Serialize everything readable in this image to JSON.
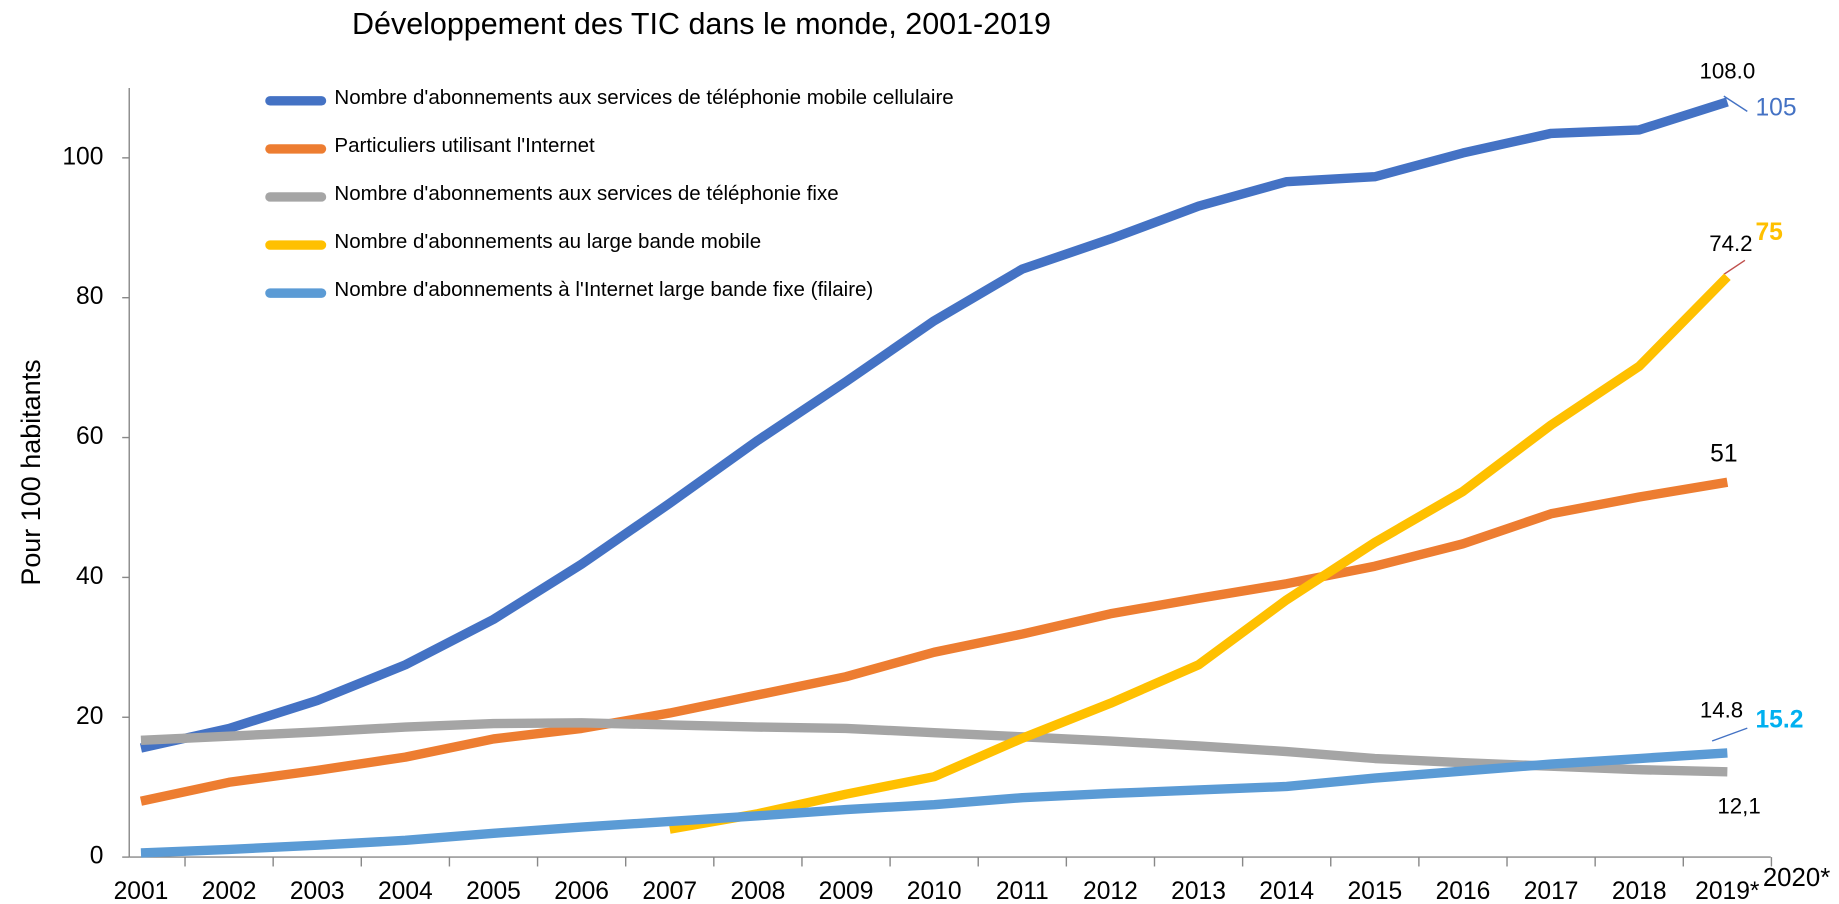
{
  "chart_data": {
    "type": "line",
    "title": "Développement des TIC dans le monde, 2001-2019",
    "y_label": "Pour 100 habitants",
    "categories": [
      "2001",
      "2002",
      "2003",
      "2004",
      "2005",
      "2006",
      "2007",
      "2008",
      "2009",
      "2010",
      "2011",
      "2012",
      "2013",
      "2014",
      "2015",
      "2016",
      "2017",
      "2018",
      "2019*"
    ],
    "x_axis_end_label": "2020*",
    "ylim": [
      0,
      110
    ],
    "yticks": [
      0,
      20,
      40,
      60,
      80,
      100
    ],
    "legend": "top-left",
    "series": [
      {
        "name": "Nombre d'abonnements aux services de téléphonie mobile cellulaire",
        "color": "#4472c4",
        "values": [
          15.6,
          18.4,
          22.4,
          27.5,
          34,
          41.9,
          50.6,
          59.6,
          68,
          76.7,
          84.1,
          88.4,
          93.1,
          96.6,
          97.3,
          100.7,
          103.5,
          104,
          108
        ]
      },
      {
        "name": "Particuliers utilisant l'Internet",
        "color": "#ed7d31",
        "values": [
          8,
          10.7,
          12.4,
          14.3,
          16.9,
          18.4,
          20.6,
          23.2,
          25.8,
          29.3,
          31.9,
          34.8,
          37,
          39.1,
          41.6,
          44.8,
          49.1,
          51.5,
          53.6
        ]
      },
      {
        "name": "Nombre d'abonnements aux services de téléphonie fixe",
        "color": "#a5a5a5",
        "values": [
          16.7,
          17.3,
          17.9,
          18.6,
          19.1,
          19.2,
          18.9,
          18.6,
          18.4,
          17.8,
          17.2,
          16.6,
          15.9,
          15.1,
          14.1,
          13.5,
          13,
          12.5,
          12.2
        ]
      },
      {
        "name": "Nombre d'abonnements au large bande mobile",
        "color": "#ffc000",
        "values": [
          null,
          null,
          null,
          null,
          null,
          null,
          4,
          6.2,
          9,
          11.5,
          17,
          22,
          27.5,
          36.8,
          45,
          52.3,
          61.8,
          70.2,
          83
        ]
      },
      {
        "name": "Nombre d'abonnements à l'Internet large bande fixe (filaire)",
        "color": "#5b9bd5",
        "values": [
          0.6,
          1.1,
          1.7,
          2.4,
          3.4,
          4.3,
          5.1,
          5.9,
          6.8,
          7.5,
          8.5,
          9.1,
          9.6,
          10.1,
          11.3,
          12.3,
          13.3,
          14.1,
          14.9
        ]
      }
    ],
    "annotations": [
      {
        "text": "108.0",
        "color": "#000000"
      },
      {
        "text": "105",
        "color": "#4472c4"
      },
      {
        "text": "74.2",
        "color": "#000000"
      },
      {
        "text": "75",
        "color": "#ffc000"
      },
      {
        "text": "51",
        "color": "#000000"
      },
      {
        "text": "14.8",
        "color": "#000000"
      },
      {
        "text": "15.2",
        "color": "#00b0f0"
      },
      {
        "text": "12,1",
        "color": "#000000"
      }
    ]
  }
}
